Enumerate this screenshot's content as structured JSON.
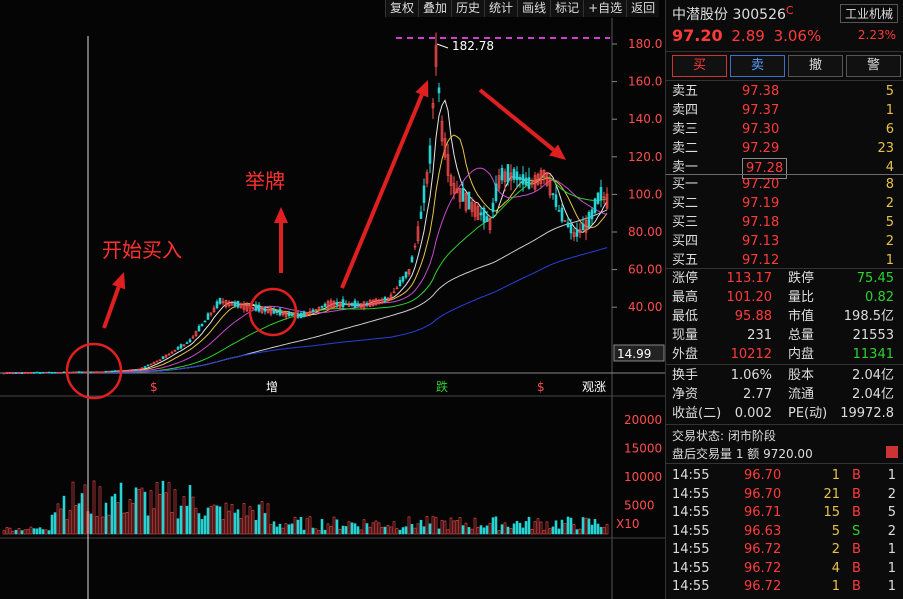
{
  "toolbar": {
    "items": [
      "复权",
      "叠加",
      "历史",
      "统计",
      "画线",
      "标记",
      "+自选",
      "返回"
    ]
  },
  "chart": {
    "y_labels": [
      "180.0",
      "160.0",
      "140.0",
      "120.0",
      "100.0",
      "80.00",
      "60.00",
      "40.00"
    ],
    "last_price": "14.99",
    "peak_label": "182.78",
    "vol_labels": [
      "20000",
      "15000",
      "10000",
      "5000"
    ],
    "vol_unit": "X10",
    "markers": [
      "$",
      "增",
      "跌",
      "$",
      "观涨"
    ],
    "annotations": {
      "start_buy": "开始买入",
      "raise_flag": "举牌"
    }
  },
  "panel": {
    "stock_name": "中潜股份",
    "stock_code": "300526",
    "code_flag": "C",
    "industry": "工业机械",
    "price": "97.20",
    "change": "2.89",
    "change_pct": "3.06%",
    "industry_pct": "2.23%",
    "buttons": {
      "buy": "买",
      "sell": "卖",
      "cancel": "撤",
      "alert": "警"
    },
    "asks": [
      {
        "label": "卖五",
        "price": "97.38",
        "vol": "5"
      },
      {
        "label": "卖四",
        "price": "97.37",
        "vol": "1"
      },
      {
        "label": "卖三",
        "price": "97.30",
        "vol": "6"
      },
      {
        "label": "卖二",
        "price": "97.29",
        "vol": "23"
      },
      {
        "label": "卖一",
        "price": "97.28",
        "vol": "4"
      }
    ],
    "bids": [
      {
        "label": "买一",
        "price": "97.20",
        "vol": "8"
      },
      {
        "label": "买二",
        "price": "97.19",
        "vol": "2"
      },
      {
        "label": "买三",
        "price": "97.18",
        "vol": "5"
      },
      {
        "label": "买四",
        "price": "97.13",
        "vol": "2"
      },
      {
        "label": "买五",
        "price": "97.12",
        "vol": "1"
      }
    ],
    "stats": [
      {
        "l1": "涨停",
        "v1": "113.17",
        "c1": "red",
        "l2": "跌停",
        "v2": "75.45",
        "c2": "green"
      },
      {
        "l1": "最高",
        "v1": "101.20",
        "c1": "red",
        "l2": "量比",
        "v2": "0.82",
        "c2": "green"
      },
      {
        "l1": "最低",
        "v1": "95.88",
        "c1": "red",
        "l2": "市值",
        "v2": "198.5亿",
        "c2": "white"
      },
      {
        "l1": "现量",
        "v1": "231",
        "c1": "white",
        "l2": "总量",
        "v2": "21553",
        "c2": "white"
      },
      {
        "l1": "外盘",
        "v1": "10212",
        "c1": "red",
        "l2": "内盘",
        "v2": "11341",
        "c2": "green"
      }
    ],
    "stats2": [
      {
        "l1": "换手",
        "v1": "1.06%",
        "l2": "股本",
        "v2": "2.04亿"
      },
      {
        "l1": "净资",
        "v1": "2.77",
        "l2": "流通",
        "v2": "2.04亿"
      },
      {
        "l1": "收益(二)",
        "v1": "0.002",
        "l2": "PE(动)",
        "v2": "19972.8"
      }
    ],
    "trade_status": "交易状态: 闭市阶段",
    "after_hours": "盘后交易量 1 额 9720.00",
    "ticks": [
      {
        "time": "14:55",
        "price": "96.70",
        "vol": "1",
        "side": "B",
        "n": "1"
      },
      {
        "time": "14:55",
        "price": "96.70",
        "vol": "21",
        "side": "B",
        "n": "2"
      },
      {
        "time": "14:55",
        "price": "96.71",
        "vol": "15",
        "side": "B",
        "n": "5"
      },
      {
        "time": "14:55",
        "price": "96.63",
        "vol": "5",
        "side": "S",
        "n": "2"
      },
      {
        "time": "14:55",
        "price": "96.72",
        "vol": "2",
        "side": "B",
        "n": "1"
      },
      {
        "time": "14:55",
        "price": "96.72",
        "vol": "4",
        "side": "B",
        "n": "1"
      },
      {
        "time": "14:55",
        "price": "96.72",
        "vol": "1",
        "side": "B",
        "n": "1"
      }
    ]
  }
}
